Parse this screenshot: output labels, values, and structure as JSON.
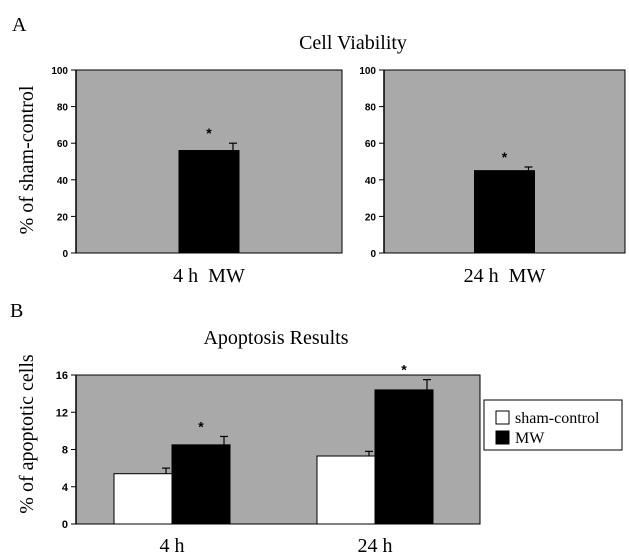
{
  "panel_a": {
    "label": "A",
    "title": "Cell Viability",
    "ylabel": "% of sham-control"
  },
  "panel_b": {
    "label": "B",
    "title": "Apoptosis Results",
    "ylabel": "% of apoptotic cells"
  },
  "colors": {
    "plot_bg": "#a9a9a9",
    "bar_dark": "#000000",
    "bar_light": "#ffffff",
    "text": "#000000"
  },
  "chart_data": [
    {
      "type": "bar",
      "title": "Cell Viability",
      "ylabel": "% of sham-control",
      "categories": [
        "4 h  MW"
      ],
      "values": [
        56
      ],
      "errors": [
        4
      ],
      "significance": [
        "*"
      ],
      "ylim": [
        0,
        100
      ],
      "yticks": [
        0,
        20,
        40,
        60,
        80,
        100
      ],
      "grid": false
    },
    {
      "type": "bar",
      "title": "Cell Viability",
      "ylabel": "% of sham-control",
      "categories": [
        "24 h  MW"
      ],
      "values": [
        45
      ],
      "errors": [
        2
      ],
      "significance": [
        "*"
      ],
      "ylim": [
        0,
        100
      ],
      "yticks": [
        0,
        20,
        40,
        60,
        80,
        100
      ],
      "grid": false
    },
    {
      "type": "bar",
      "title": "Apoptosis Results",
      "ylabel": "% of apoptotic cells",
      "categories": [
        "4 h",
        "24 h"
      ],
      "series": [
        {
          "name": "sham-control",
          "values": [
            5.4,
            7.3
          ],
          "errors": [
            0.6,
            0.5
          ],
          "significance": [
            "",
            ""
          ]
        },
        {
          "name": "MW",
          "values": [
            8.5,
            14.4
          ],
          "errors": [
            0.9,
            1.1
          ],
          "significance": [
            "*",
            "*"
          ]
        }
      ],
      "ylim": [
        0,
        16
      ],
      "yticks": [
        0,
        4,
        8,
        12,
        16
      ],
      "legend_position": "right",
      "grid": false
    }
  ]
}
